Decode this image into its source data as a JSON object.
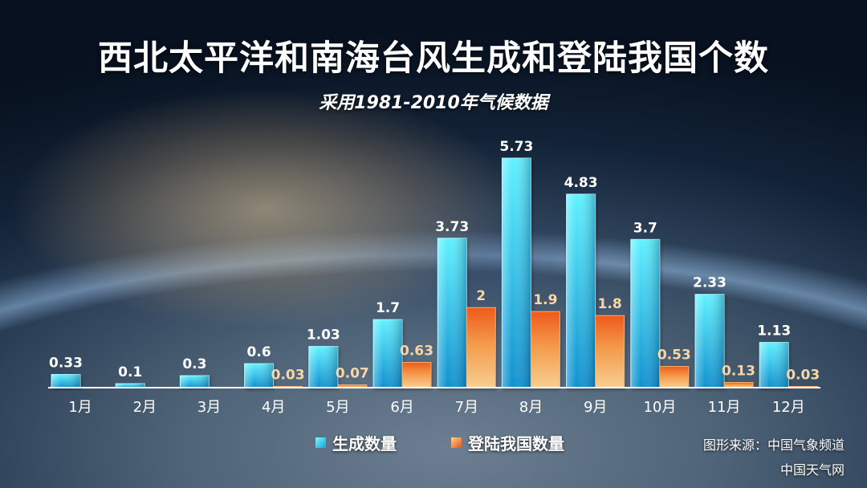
{
  "title": "西北太平洋和南海台风生成和登陆我国个数",
  "subtitle": "采用1981-2010年气候数据",
  "chart_data": {
    "type": "bar",
    "categories": [
      "1月",
      "2月",
      "3月",
      "4月",
      "5月",
      "6月",
      "7月",
      "8月",
      "9月",
      "10月",
      "11月",
      "12月"
    ],
    "series": [
      {
        "name": "生成数量",
        "values": [
          0.33,
          0.1,
          0.3,
          0.6,
          1.03,
          1.7,
          3.73,
          5.73,
          4.83,
          3.7,
          2.33,
          1.13
        ],
        "labels": [
          "0.33",
          "0.1",
          "0.3",
          "0.6",
          "1.03",
          "1.7",
          "3.73",
          "5.73",
          "4.83",
          "3.7",
          "2.33",
          "1.13"
        ]
      },
      {
        "name": "登陆我国数量",
        "values": [
          0,
          0,
          0,
          0.03,
          0.07,
          0.63,
          2,
          1.9,
          1.8,
          0.53,
          0.13,
          0.03
        ],
        "labels": [
          "",
          "",
          "",
          "0.03",
          "0.07",
          "0.63",
          "2",
          "1.9",
          "1.8",
          "0.53",
          "0.13",
          "0.03"
        ]
      }
    ],
    "ylim": [
      0,
      6
    ],
    "grid": false,
    "legend": "bottom-center",
    "colors": {
      "generated": "#1ec8ee",
      "landed": "#f07a2a",
      "generated_label": "#ffffff",
      "landed_label": "#f6d7a8"
    }
  },
  "legend": {
    "generated": "生成数量",
    "landed": "登陆我国数量"
  },
  "credits": {
    "source": "图形来源：中国气象频道",
    "site": "中国天气网"
  }
}
